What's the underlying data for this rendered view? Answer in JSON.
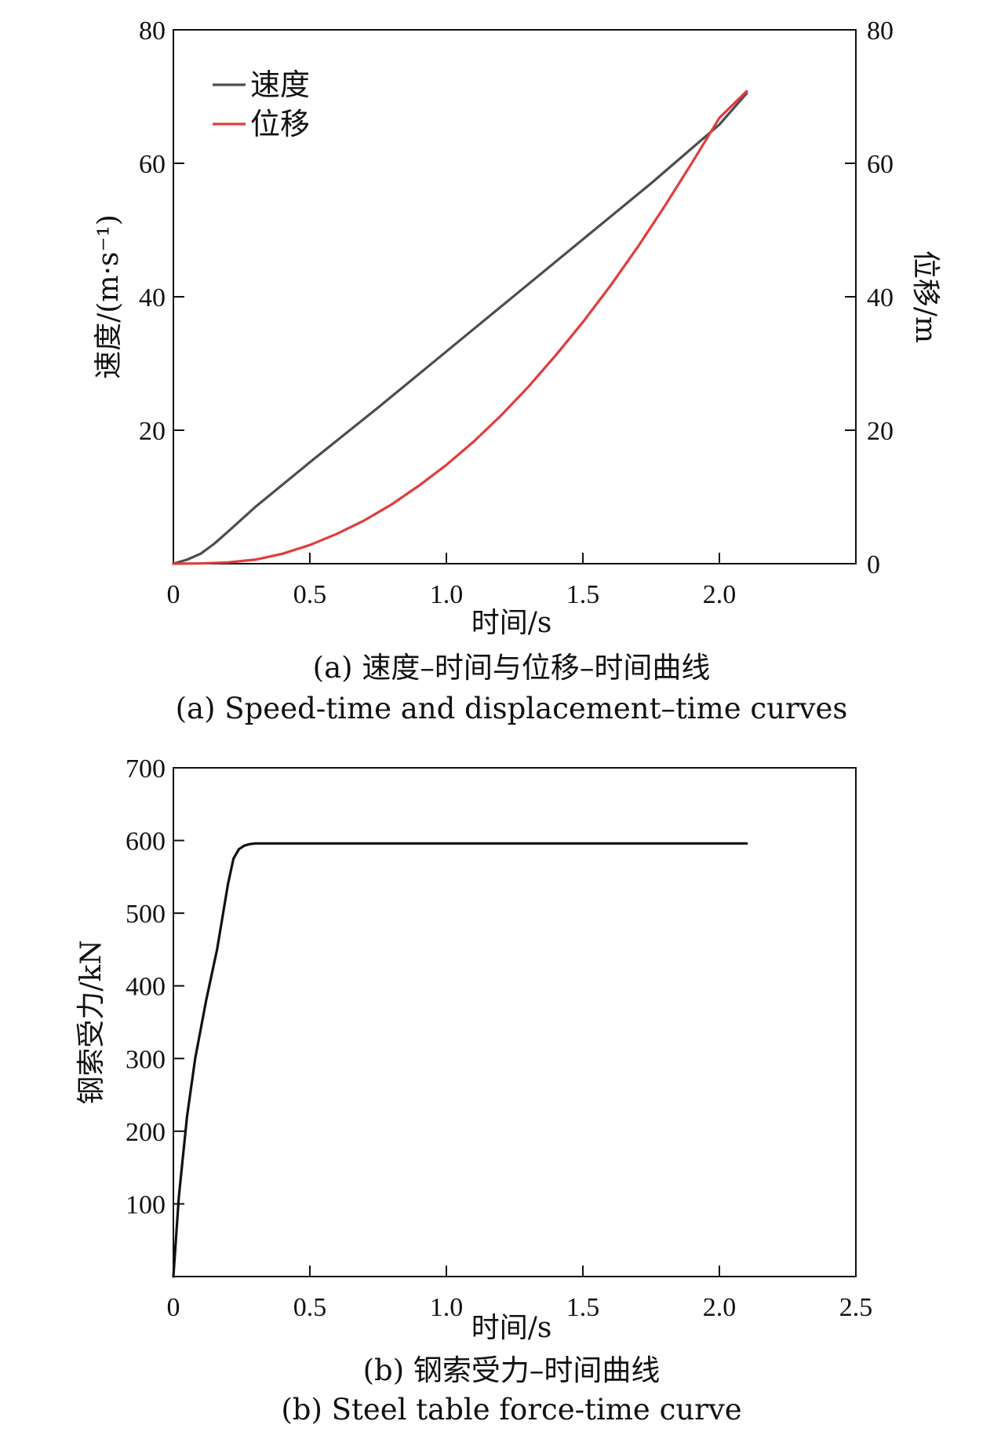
{
  "chart_data": [
    {
      "type": "line",
      "xlabel": "时间/s",
      "ylabel": "速度/(m·s⁻¹)",
      "y2label": "位移/m",
      "xlim": [
        0,
        2.5
      ],
      "ylim": [
        0,
        80
      ],
      "y2lim": [
        0,
        80
      ],
      "xticks": [
        "0",
        "0.5",
        "1.0",
        "1.5",
        "2.0"
      ],
      "yticks": [
        "20",
        "40",
        "60",
        "80"
      ],
      "y2ticks": [
        "0",
        "20",
        "40",
        "60",
        "80"
      ],
      "grid": false,
      "legend_position": "top-left",
      "series": [
        {
          "name": "速度",
          "color": "#4d4d4d",
          "x": [
            0,
            0.05,
            0.1,
            0.15,
            0.2,
            0.3,
            0.5,
            0.75,
            1.0,
            1.25,
            1.5,
            1.75,
            2.0,
            2.1
          ],
          "y": [
            0,
            0.6,
            1.5,
            3.0,
            4.8,
            8.5,
            15.2,
            23.4,
            31.8,
            40.2,
            48.6,
            57.0,
            65.8,
            70.5
          ]
        },
        {
          "name": "位移",
          "color": "#e03c3c",
          "x": [
            0,
            0.1,
            0.2,
            0.3,
            0.4,
            0.5,
            0.6,
            0.7,
            0.8,
            0.9,
            1.0,
            1.1,
            1.2,
            1.3,
            1.4,
            1.5,
            1.6,
            1.7,
            1.8,
            1.9,
            2.0,
            2.1
          ],
          "y": [
            0,
            0.03,
            0.2,
            0.6,
            1.5,
            2.8,
            4.5,
            6.5,
            8.9,
            11.7,
            14.8,
            18.3,
            22.2,
            26.5,
            31.2,
            36.2,
            41.6,
            47.4,
            53.6,
            60.1,
            66.8,
            70.8
          ]
        }
      ],
      "caption_cn": "(a) 速度–时间与位移–时间曲线",
      "caption_en": "(a) Speed-time and displacement–time curves"
    },
    {
      "type": "line",
      "xlabel": "时间/s",
      "ylabel": "钢索受力/kN",
      "xlim": [
        0,
        2.5
      ],
      "ylim": [
        0,
        700
      ],
      "xticks": [
        "0",
        "0.5",
        "1.0",
        "1.5",
        "2.0",
        "2.5"
      ],
      "yticks": [
        "100",
        "200",
        "300",
        "400",
        "500",
        "600",
        "700"
      ],
      "grid": false,
      "series": [
        {
          "color": "#111111",
          "x": [
            0,
            0.02,
            0.05,
            0.08,
            0.12,
            0.16,
            0.2,
            0.22,
            0.24,
            0.26,
            0.28,
            0.3,
            0.5,
            1.0,
            1.5,
            2.0,
            2.1
          ],
          "y": [
            0,
            110,
            220,
            300,
            380,
            450,
            540,
            575,
            588,
            593,
            595,
            596,
            596,
            596,
            596,
            596,
            596
          ]
        }
      ],
      "caption_cn": "(b) 钢索受力–时间曲线",
      "caption_en": "(b) Steel table force-time curve"
    }
  ]
}
